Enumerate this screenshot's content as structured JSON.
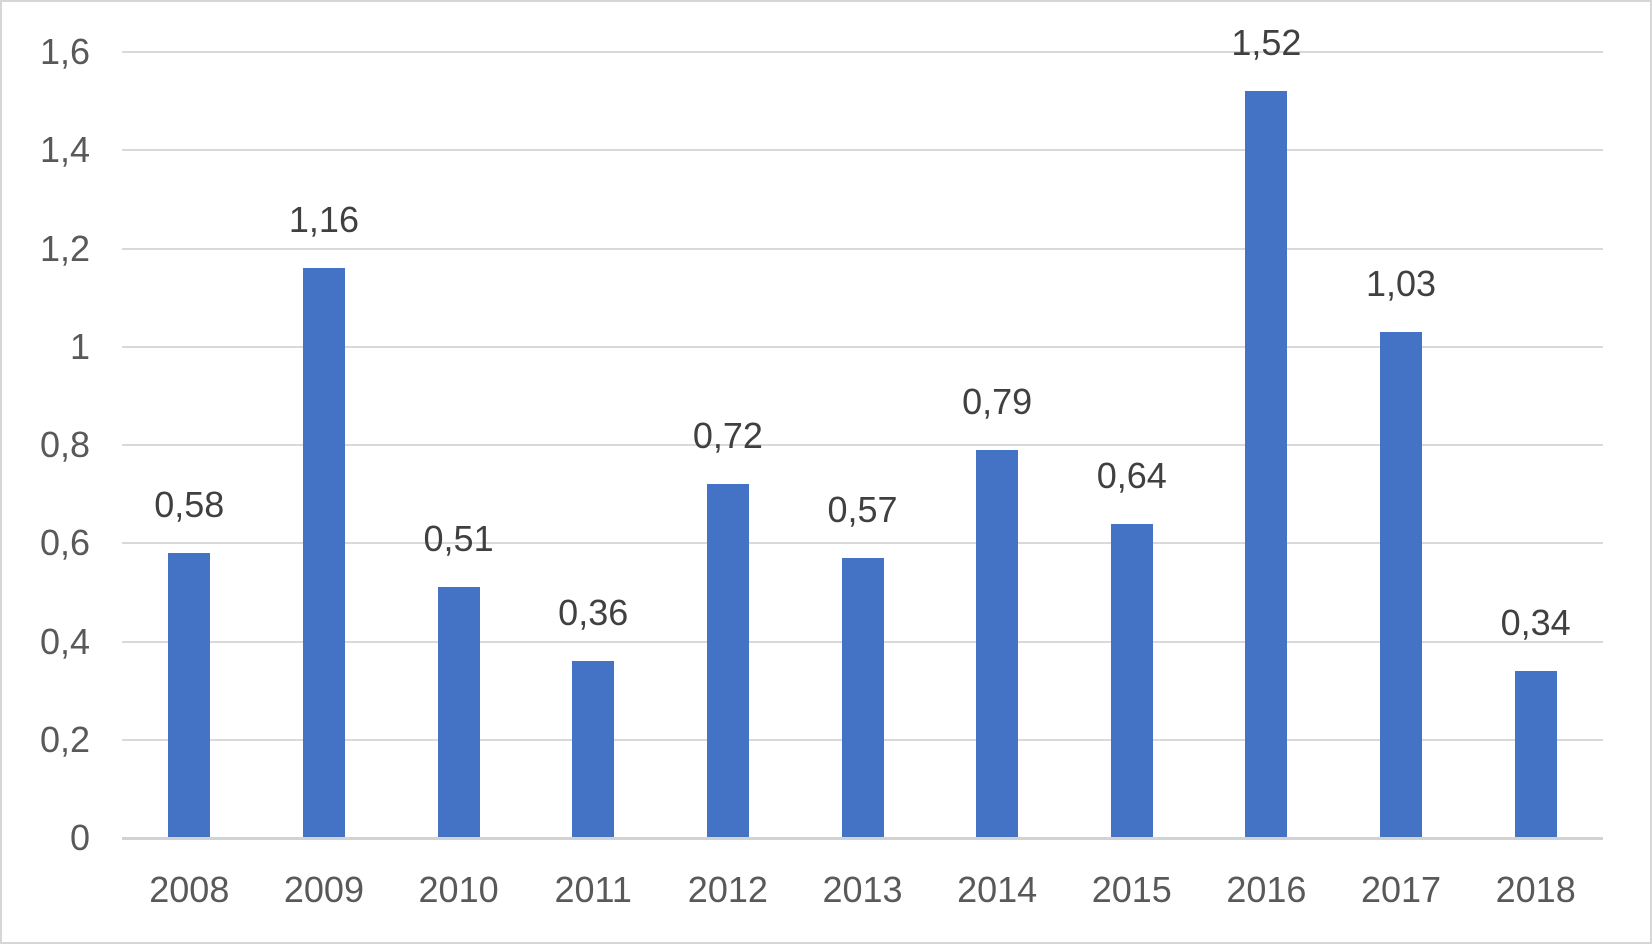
{
  "chart_data": {
    "type": "bar",
    "title": "",
    "xlabel": "",
    "ylabel": "",
    "categories": [
      "2008",
      "2009",
      "2010",
      "2011",
      "2012",
      "2013",
      "2014",
      "2015",
      "2016",
      "2017",
      "2018"
    ],
    "values": [
      0.58,
      1.16,
      0.51,
      0.36,
      0.72,
      0.57,
      0.79,
      0.64,
      1.52,
      1.03,
      0.34
    ],
    "data_labels": [
      "0,58",
      "1,16",
      "0,51",
      "0,36",
      "0,72",
      "0,57",
      "0,79",
      "0,64",
      "1,52",
      "1,03",
      "0,34"
    ],
    "y_ticks": [
      {
        "label": "0",
        "value": 0
      },
      {
        "label": "0,2",
        "value": 0.2
      },
      {
        "label": "0,4",
        "value": 0.4
      },
      {
        "label": "0,6",
        "value": 0.6
      },
      {
        "label": "0,8",
        "value": 0.8
      },
      {
        "label": "1",
        "value": 1
      },
      {
        "label": "1,2",
        "value": 1.2
      },
      {
        "label": "1,4",
        "value": 1.4
      },
      {
        "label": "1,6",
        "value": 1.6
      }
    ],
    "ylim": [
      0,
      1.6
    ],
    "grid": true,
    "legend": "none",
    "decimal_separator": ",",
    "colors": {
      "bar": "#4472C4",
      "gridline": "#D9D9D9",
      "axis_line": "#D2D2D2",
      "axis_text": "#595959",
      "data_label_text": "#404040",
      "border": "#D6D6D6",
      "background": "#FFFFFF"
    }
  }
}
